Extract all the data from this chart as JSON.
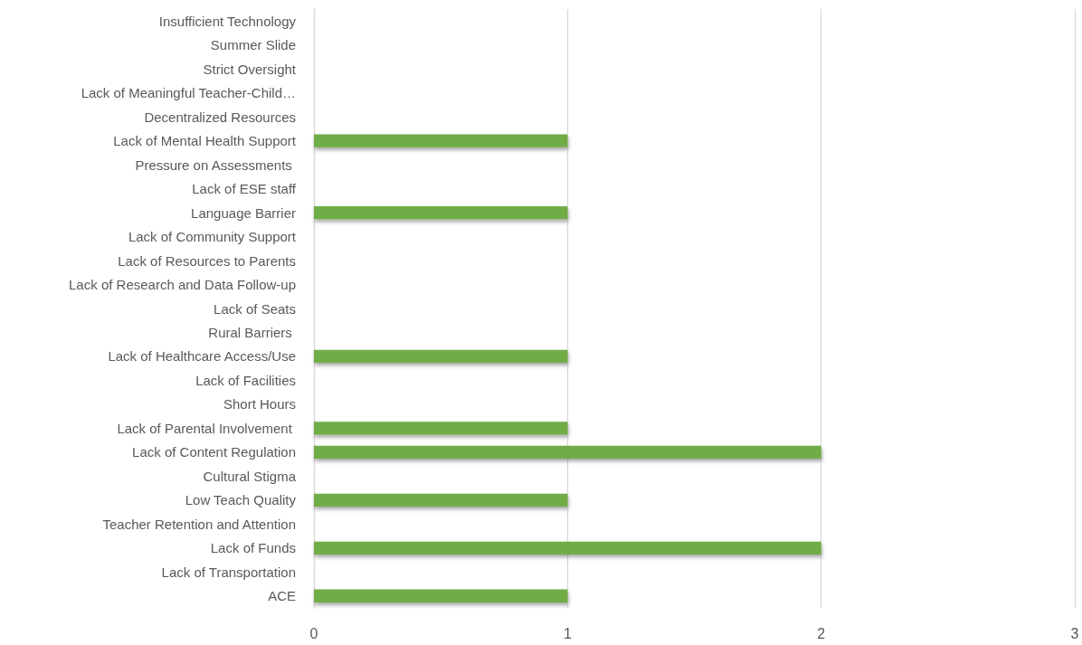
{
  "chart_data": {
    "type": "bar",
    "orientation": "horizontal",
    "categories": [
      "Insufficient Technology",
      "Summer Slide",
      "Strict Oversight",
      "Lack of Meaningful Teacher-Child…",
      "Decentralized Resources",
      "Lack of Mental Health Support",
      "Pressure on Assessments ",
      "Lack of ESE staff",
      "Language Barrier",
      "Lack of Community Support",
      "Lack of Resources to Parents",
      "Lack of Research and Data Follow-up",
      "Lack of Seats",
      "Rural Barriers ",
      "Lack of Healthcare Access/Use",
      "Lack of Facilities",
      "Short Hours",
      "Lack of Parental Involvement ",
      "Lack of Content Regulation",
      "Cultural Stigma",
      "Low Teach Quality",
      "Teacher Retention and Attention",
      "Lack of Funds",
      "Lack of Transportation",
      "ACE"
    ],
    "values": [
      0,
      0,
      0,
      0,
      0,
      1,
      0,
      0,
      1,
      0,
      0,
      0,
      0,
      0,
      1,
      0,
      0,
      1,
      2,
      0,
      1,
      0,
      2,
      0,
      1
    ],
    "color": "#70ad47",
    "xlim": [
      0,
      3
    ],
    "xticks": [
      0,
      1,
      2,
      3
    ],
    "grid": "x"
  }
}
